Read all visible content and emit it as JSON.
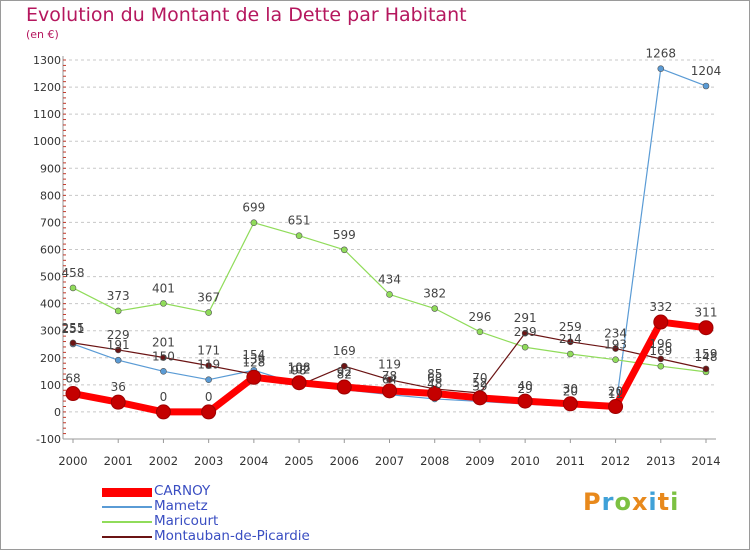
{
  "title": "Evolution du Montant de la Dette par Habitant",
  "unit_label": "(en €)",
  "logo_text": "Proxiti",
  "logo_colors": [
    "#e8891c",
    "#3fa1d8",
    "#7cc142",
    "#e8891c",
    "#3fa1d8",
    "#e8891c",
    "#7cc142"
  ],
  "chart_data": {
    "type": "line",
    "title": "Evolution du Montant de la Dette par Habitant",
    "ylabel": "(en €)",
    "xlabel": "",
    "ylim": [
      -100,
      1300
    ],
    "yticks": [
      -100,
      0,
      100,
      200,
      300,
      400,
      500,
      600,
      700,
      800,
      900,
      1000,
      1100,
      1200,
      1300
    ],
    "x": [
      "2000",
      "2001",
      "2002",
      "2003",
      "2004",
      "2005",
      "2006",
      "2007",
      "2008",
      "2009",
      "2010",
      "2011",
      "2012",
      "2013",
      "2014"
    ],
    "grid": "horizontal dashed",
    "legend_position": "bottom-left",
    "series": [
      {
        "name": "CARNOY",
        "color": "#ff0000",
        "values": [
          68,
          36,
          0,
          0,
          128,
          108,
          92,
          78,
          68,
          52,
          40,
          30,
          20,
          332,
          311
        ]
      },
      {
        "name": "Mametz",
        "color": "#5a9bd5",
        "values": [
          251,
          191,
          150,
          119,
          154,
          102,
          82,
          64,
          48,
          39,
          29,
          20,
          11,
          1268,
          1204
        ]
      },
      {
        "name": "Maricourt",
        "color": "#90dc5a",
        "values": [
          458,
          373,
          401,
          367,
          699,
          651,
          599,
          434,
          382,
          296,
          239,
          214,
          193,
          169,
          148
        ]
      },
      {
        "name": "Montauban-de-Picardie",
        "color": "#6b1414",
        "values": [
          255,
          229,
          201,
          171,
          139,
          98,
          169,
          119,
          85,
          70,
          291,
          259,
          234,
          196,
          159
        ]
      }
    ],
    "data_labels": [
      [
        "68",
        "36",
        "0",
        "0",
        "128",
        "108",
        "92",
        "78",
        "68",
        "52",
        "40",
        "30",
        "20",
        "332",
        "311"
      ],
      [
        "251",
        "191",
        "150",
        "119",
        "154",
        "102",
        "82",
        "64",
        "48",
        "39",
        "29",
        "20",
        "11",
        "1268",
        "1204"
      ],
      [
        "458",
        "373",
        "401",
        "367",
        "699",
        "651",
        "599",
        "434",
        "382",
        "296",
        "239",
        "214",
        "193",
        "169",
        "148"
      ],
      [
        "255",
        "229",
        "201",
        "171",
        "139",
        "98",
        "169",
        "119",
        "85",
        "70",
        "291",
        "259",
        "234",
        "196",
        "159"
      ]
    ]
  }
}
